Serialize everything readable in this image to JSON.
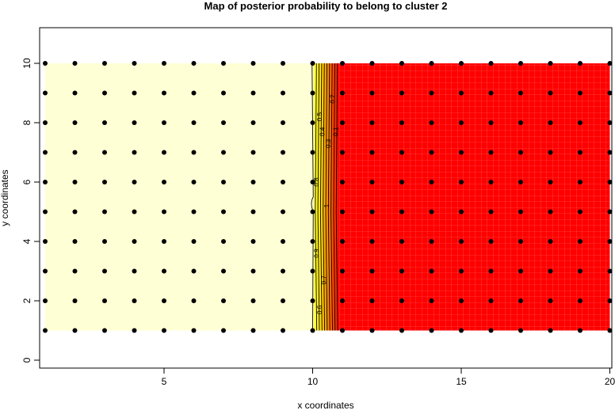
{
  "chart_data": {
    "type": "heatmap",
    "title": "Map of posterior probability to belong to cluster  2",
    "xlabel": "x coordinates",
    "ylabel": "y coordinates",
    "xlim": [
      1,
      20
    ],
    "ylim": [
      0,
      10
    ],
    "x_ticks": [
      5,
      10,
      15,
      20
    ],
    "y_ticks": [
      0,
      2,
      4,
      6,
      8,
      10
    ],
    "grid": false,
    "points": {
      "x": [
        1,
        2,
        3,
        4,
        5,
        6,
        7,
        8,
        9,
        10,
        11,
        12,
        13,
        14,
        15,
        16,
        17,
        18,
        19,
        20
      ],
      "y": [
        1,
        2,
        3,
        4,
        5,
        6,
        7,
        8,
        9,
        10
      ]
    },
    "probability_field": {
      "description_values": "x <= 10 : 1, x >= 11 : 0",
      "high_color": "#FFFFD5",
      "mid_color": "#FFFF00",
      "low_color": "#FF0000"
    },
    "contour_levels": [
      1,
      0.9,
      0.8,
      0.7,
      0.6,
      0.5,
      0.4,
      0.3,
      0.2,
      0.1
    ],
    "contour_labels": [
      {
        "level": "0.2",
        "x": 10.75,
        "y": 8.8
      },
      {
        "level": "0.5",
        "x": 10.3,
        "y": 8.2
      },
      {
        "level": "0.1",
        "x": 10.85,
        "y": 7.7
      },
      {
        "level": "0.3",
        "x": 10.6,
        "y": 7.3
      },
      {
        "level": "0.4",
        "x": 10.4,
        "y": 7.7
      },
      {
        "level": "0.8",
        "x": 10.2,
        "y": 6.0
      },
      {
        "level": "1",
        "x": 10.55,
        "y": 5.2
      },
      {
        "level": "0.9",
        "x": 10.2,
        "y": 3.6
      },
      {
        "level": "0.7",
        "x": 10.45,
        "y": 2.7
      },
      {
        "level": "0.6",
        "x": 10.3,
        "y": 1.7
      }
    ]
  }
}
